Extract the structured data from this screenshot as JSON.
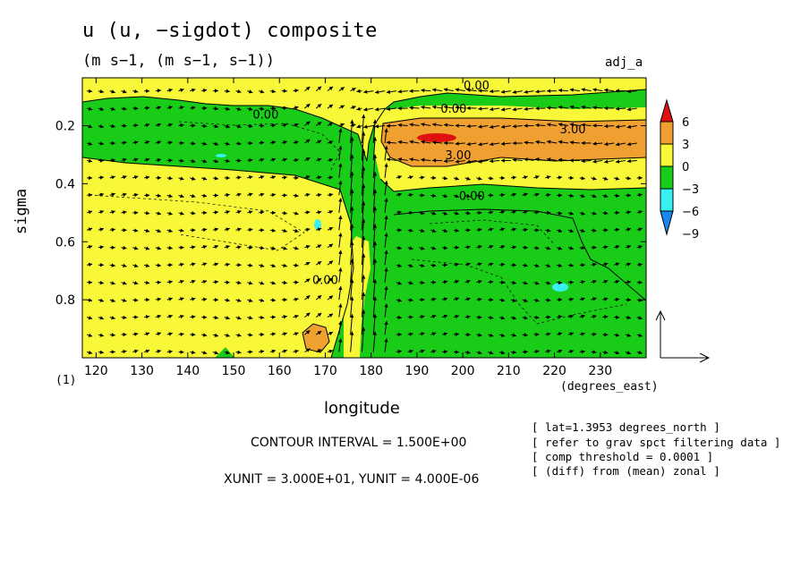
{
  "chart_data": {
    "type": "heatmap",
    "title": "u (u, −sigdot) composite",
    "units_line": "(m s−1, (m s−1, s−1))",
    "label_right": "adj_a",
    "xlabel": "longitude",
    "xunit": "(degrees_east)",
    "ylabel": "sigma",
    "index_label": "(1)",
    "xlim": [
      117,
      240
    ],
    "ylim": [
      1.0,
      0.035
    ],
    "x_ticks": [
      120,
      130,
      140,
      150,
      160,
      170,
      180,
      190,
      200,
      210,
      220,
      230
    ],
    "x_tick_labels": [
      "120",
      "130",
      "140",
      "150",
      "160",
      "170",
      "180",
      "190",
      "200",
      "210",
      "220",
      "230"
    ],
    "y_ticks": [
      0.2,
      0.4,
      0.6,
      0.8
    ],
    "y_tick_labels": [
      "0.2",
      "0.4",
      "0.6",
      "0.8"
    ],
    "contour_labels": [
      {
        "text": "0.00",
        "lon": 203,
        "sigma": 0.06
      },
      {
        "text": "0.00",
        "lon": 198,
        "sigma": 0.14
      },
      {
        "text": "0.00",
        "lon": 157,
        "sigma": 0.16
      },
      {
        "text": "3.00",
        "lon": 224,
        "sigma": 0.21
      },
      {
        "text": "3.00",
        "lon": 199,
        "sigma": 0.3
      },
      {
        "text": "0.00",
        "lon": 202,
        "sigma": 0.44
      },
      {
        "text": "0.00",
        "lon": 170,
        "sigma": 0.73
      }
    ],
    "colorbar": {
      "levels": [
        6,
        3,
        0,
        -3,
        -6,
        -9
      ],
      "level_labels": [
        "6",
        "3",
        "0",
        "−3",
        "−6",
        "−9"
      ],
      "colors": [
        "#e01010",
        "#f0a030",
        "#f8f838",
        "#18cc18",
        "#38f0f0",
        "#1888f0"
      ]
    },
    "contour_interval": "CONTOUR INTERVAL = 1.500E+00",
    "vector_units": "XUNIT = 3.000E+01, YUNIT = 4.000E-06",
    "notes": [
      "[ lat=1.3953 degrees_north ]",
      "[ refer to grav spct filtering data ]",
      "[ comp threshold = 0.0001 ]",
      "[ (diff) from (mean) zonal ]"
    ]
  }
}
